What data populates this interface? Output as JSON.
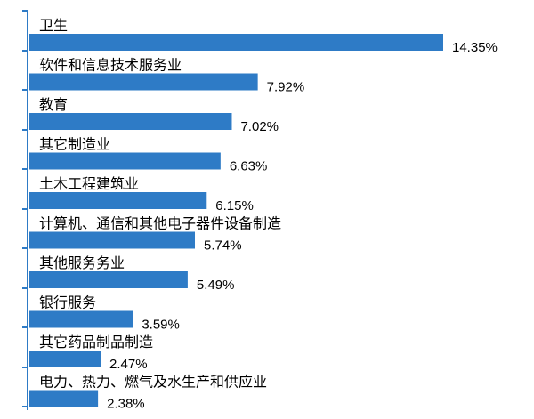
{
  "chart_data": {
    "type": "bar",
    "orientation": "horizontal",
    "categories": [
      "卫生",
      "软件和信息技术服务业",
      "教育",
      "其它制造业",
      "土木工程建筑业",
      "计算机、通信和其他电子器件设备制造",
      "其他服务务业",
      "银行服务",
      "其它药品制品制造",
      "电力、热力、燃气及水生产和供应业"
    ],
    "values": [
      14.35,
      7.92,
      7.02,
      6.63,
      6.15,
      5.74,
      5.49,
      3.59,
      2.47,
      2.38
    ],
    "value_labels": [
      "14.35%",
      "7.92%",
      "7.02%",
      "6.63%",
      "6.15%",
      "5.74%",
      "5.49%",
      "3.59%",
      "2.47%",
      "2.38%"
    ],
    "xlim": [
      0,
      14.35
    ],
    "grid": false,
    "legend": "none",
    "colors": {
      "bar": "#2E7BC6",
      "axis": "#2E7BC6",
      "text": "#000000"
    }
  }
}
